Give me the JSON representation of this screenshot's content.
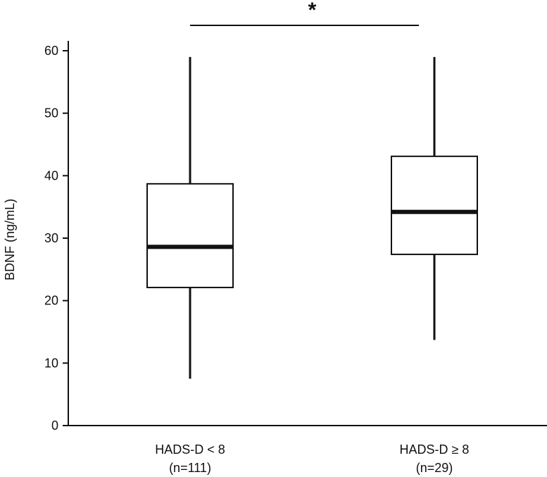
{
  "chart_data": {
    "type": "box",
    "ylabel": "BDNF (ng/mL)",
    "xlabel": "",
    "ylim": [
      0,
      60
    ],
    "yticks": [
      0,
      10,
      20,
      30,
      40,
      50,
      60
    ],
    "grid": false,
    "groups": [
      {
        "label": "HADS-D < 8",
        "n_label": "(n=111)",
        "min": 7.5,
        "q1": 22.1,
        "median": 28.6,
        "q3": 38.7,
        "max": 59.0
      },
      {
        "label": "HADS-D ≥ 8",
        "n_label": "(n=29)",
        "min": 13.7,
        "q1": 27.4,
        "median": 34.2,
        "q3": 43.1,
        "max": 59.0
      }
    ],
    "significance": {
      "between": [
        0,
        1
      ],
      "label": "*"
    }
  },
  "colors": {
    "stroke": "#111111",
    "box_fill": "#ffffff"
  }
}
